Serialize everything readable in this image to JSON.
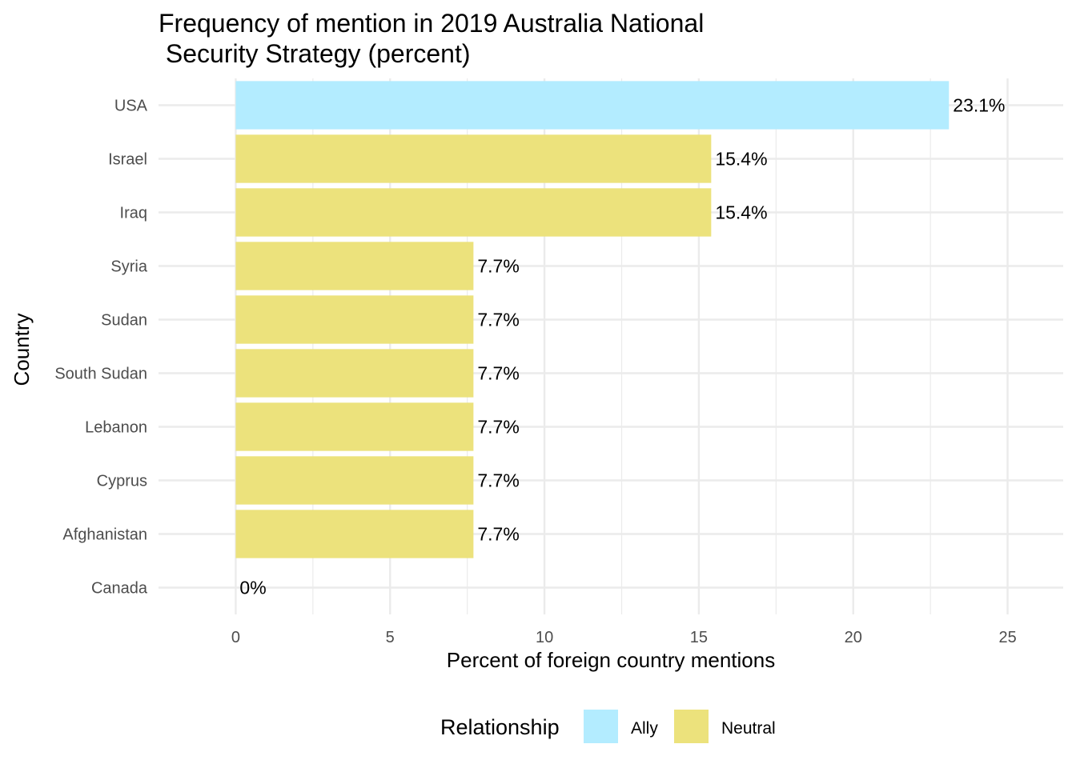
{
  "chart_data": {
    "type": "bar",
    "orientation": "horizontal",
    "title_lines": [
      "Frequency of mention in 2019 Australia National",
      " Security Strategy (percent)"
    ],
    "xlabel": "Percent of foreign country mentions",
    "ylabel": "Country",
    "xlim": [
      -2.5,
      26.8
    ],
    "x_ticks": [
      0,
      5,
      10,
      15,
      20,
      25
    ],
    "grid": true,
    "legend": {
      "title": "Relationship",
      "placement": "bottom",
      "entries": [
        {
          "name": "Ally",
          "color": "#b3ecff"
        },
        {
          "name": "Neutral",
          "color": "#ece27c"
        }
      ]
    },
    "categories": [
      "USA",
      "Israel",
      "Iraq",
      "Syria",
      "Sudan",
      "South Sudan",
      "Lebanon",
      "Cyprus",
      "Afghanistan",
      "Canada"
    ],
    "values": [
      23.1,
      15.4,
      15.4,
      7.7,
      7.7,
      7.7,
      7.7,
      7.7,
      7.7,
      0
    ],
    "value_labels": [
      "23.1%",
      "15.4%",
      "15.4%",
      "7.7%",
      "7.7%",
      "7.7%",
      "7.7%",
      "7.7%",
      "7.7%",
      "0%"
    ],
    "relationship": [
      "Ally",
      "Neutral",
      "Neutral",
      "Neutral",
      "Neutral",
      "Neutral",
      "Neutral",
      "Neutral",
      "Neutral",
      "Neutral"
    ]
  }
}
